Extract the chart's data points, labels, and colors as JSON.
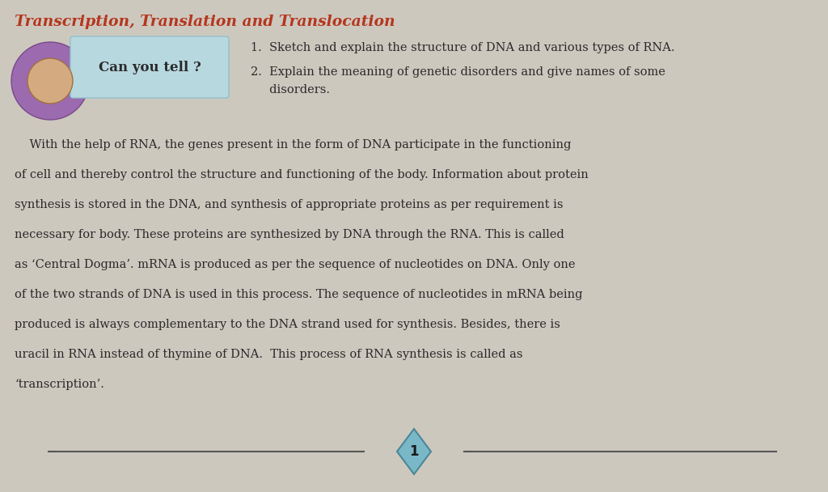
{
  "title": "Transcription, Translation and Translocation",
  "title_color": "#b5361e",
  "title_fontsize": 13.5,
  "bg_color": "#cdc8be",
  "can_you_tell_label": "Can you tell ?",
  "question1": "1.  Sketch and explain the structure of DNA and various types of RNA.",
  "question2_line1": "2.  Explain the meaning of genetic disorders and give names of some",
  "question2_line2": "     disorders.",
  "body_lines": [
    "    With the help of RNA, the genes present in the form of DNA participate in the functioning",
    "of cell and thereby control the structure and functioning of the body. Information about protein",
    "synthesis is stored in the DNA, and synthesis of appropriate proteins as per requirement is",
    "necessary for body. These proteins are synthesized by DNA through the RNA. This is called",
    "as ‘Central Dogma’. mRNA is produced as per the sequence of nucleotides on DNA. Only one",
    "of the two strands of DNA is used in this process. The sequence of nucleotides in mRNA being",
    "produced is always complementary to the DNA strand used for synthesis. Besides, there is",
    "uracil in RNA instead of thymine of DNA.  This process of RNA synthesis is called as",
    "‘transcription’."
  ],
  "page_number": "1",
  "diamond_color": "#7ab8c8",
  "line_color": "#555555",
  "text_color": "#2a2a2a",
  "box_fill": "#b8d8e0",
  "box_text_color": "#2a2a2a",
  "char_circle_color": "#9b6aaf",
  "char_face_color": "#d4aa80"
}
